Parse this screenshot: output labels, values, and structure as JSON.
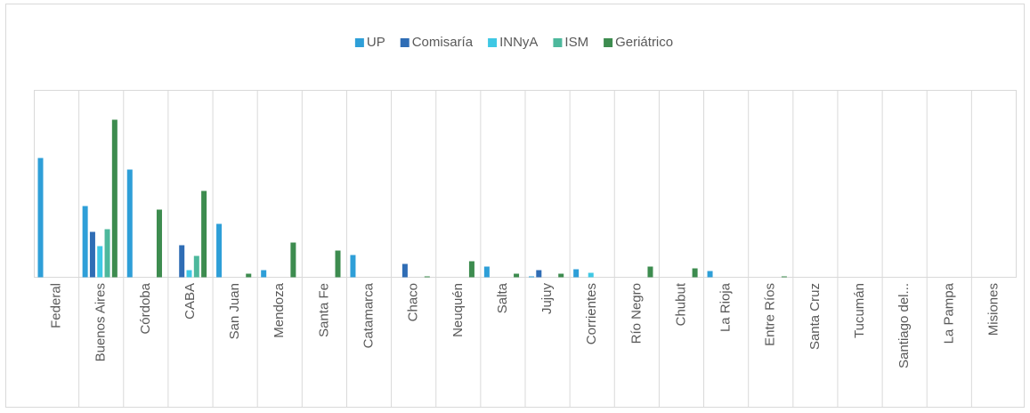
{
  "chart_data": {
    "type": "bar",
    "categories": [
      "Federal",
      "Buenos Aires",
      "Córdoba",
      "CABA",
      "San Juan",
      "Mendoza",
      "Santa Fe",
      "Catamarca",
      "Chaco",
      "Neuquén",
      "Salta",
      "Jujuy",
      "Corrientes",
      "Río Negro",
      "Chubut",
      "La Rioja",
      "Entre Ríos",
      "Santa Cruz",
      "Tucumán",
      "Santiago del...",
      "La Pampa",
      "Misiones"
    ],
    "series": [
      {
        "name": "UP",
        "color": "#2e9fd8",
        "values": [
          134,
          80,
          121,
          0,
          60,
          8,
          0,
          25,
          0,
          0,
          12,
          1,
          9,
          0,
          0,
          7,
          0,
          0,
          0,
          0,
          0,
          0
        ]
      },
      {
        "name": "Comisaría",
        "color": "#2f6db5",
        "values": [
          0,
          51,
          0,
          36,
          0,
          0,
          0,
          0,
          15,
          0,
          0,
          8,
          0,
          0,
          0,
          0,
          0,
          0,
          0,
          0,
          0,
          0
        ]
      },
      {
        "name": "INNyA",
        "color": "#3fc8e4",
        "values": [
          0,
          35,
          0,
          8,
          0,
          0,
          0,
          0,
          0,
          0,
          0,
          0,
          5,
          0,
          0,
          0,
          0,
          0,
          0,
          0,
          0,
          0
        ]
      },
      {
        "name": "ISM",
        "color": "#4db89c",
        "values": [
          0,
          54,
          0,
          24,
          0,
          0,
          0,
          0,
          0,
          0,
          0,
          0,
          0,
          0,
          0,
          0,
          0,
          0,
          0,
          0,
          0,
          0
        ]
      },
      {
        "name": "Geriátrico",
        "color": "#3d8c4f",
        "values": [
          0,
          177,
          76,
          97,
          4,
          39,
          30,
          0,
          1,
          18,
          4,
          4,
          0,
          12,
          10,
          0,
          1,
          0,
          0,
          0,
          0,
          0
        ]
      }
    ],
    "ylim": [
      0,
      210
    ],
    "legend": "top"
  }
}
